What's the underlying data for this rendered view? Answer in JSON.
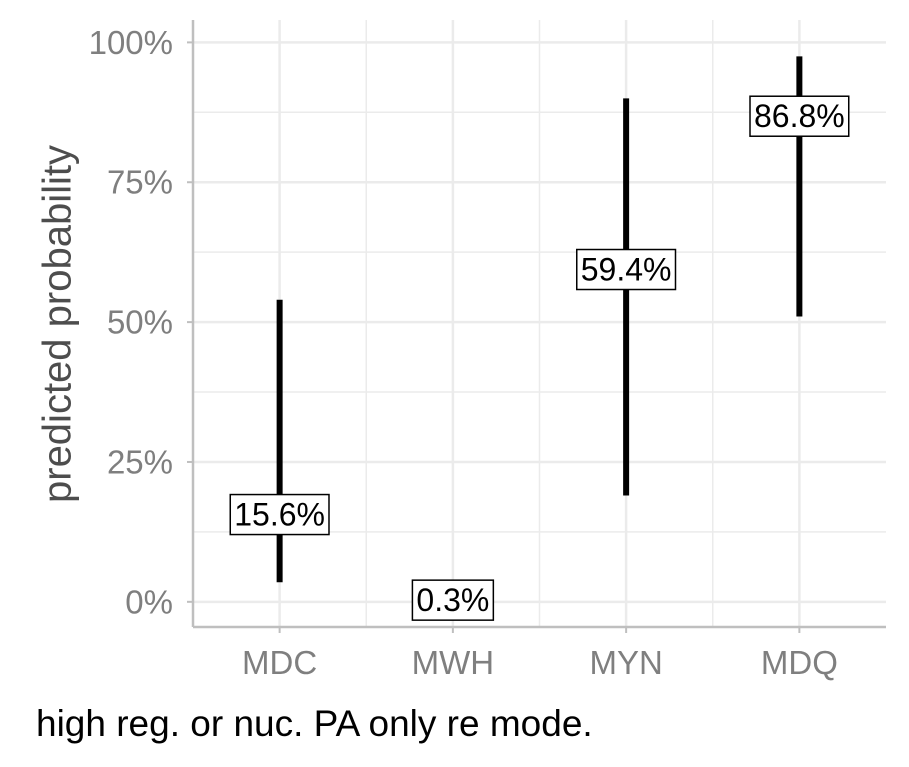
{
  "chart_data": {
    "type": "errorbar",
    "categories": [
      "MDC",
      "MWH",
      "MYN",
      "MDQ"
    ],
    "values": [
      0.156,
      0.003,
      0.594,
      0.868
    ],
    "lower": [
      0.035,
      0.001,
      0.19,
      0.51
    ],
    "upper": [
      0.54,
      0.006,
      0.9,
      0.975
    ],
    "labels": [
      "15.6%",
      "0.3%",
      "59.4%",
      "86.8%"
    ],
    "ylabel": "predicted probability",
    "caption": "high reg. or nuc. PA only re mode.",
    "ylim": [
      -0.045,
      1.04
    ],
    "yticks": [
      0,
      0.25,
      0.5,
      0.75,
      1.0
    ],
    "ytick_labels": [
      "0%",
      "25%",
      "50%",
      "75%",
      "100%"
    ],
    "grid": true,
    "colors": {
      "mark": "#000000",
      "grid": "#ebebeb",
      "axis": "#bfbfbf",
      "tick_text": "#7f7f7f",
      "title_text": "#4d4d4d"
    }
  }
}
